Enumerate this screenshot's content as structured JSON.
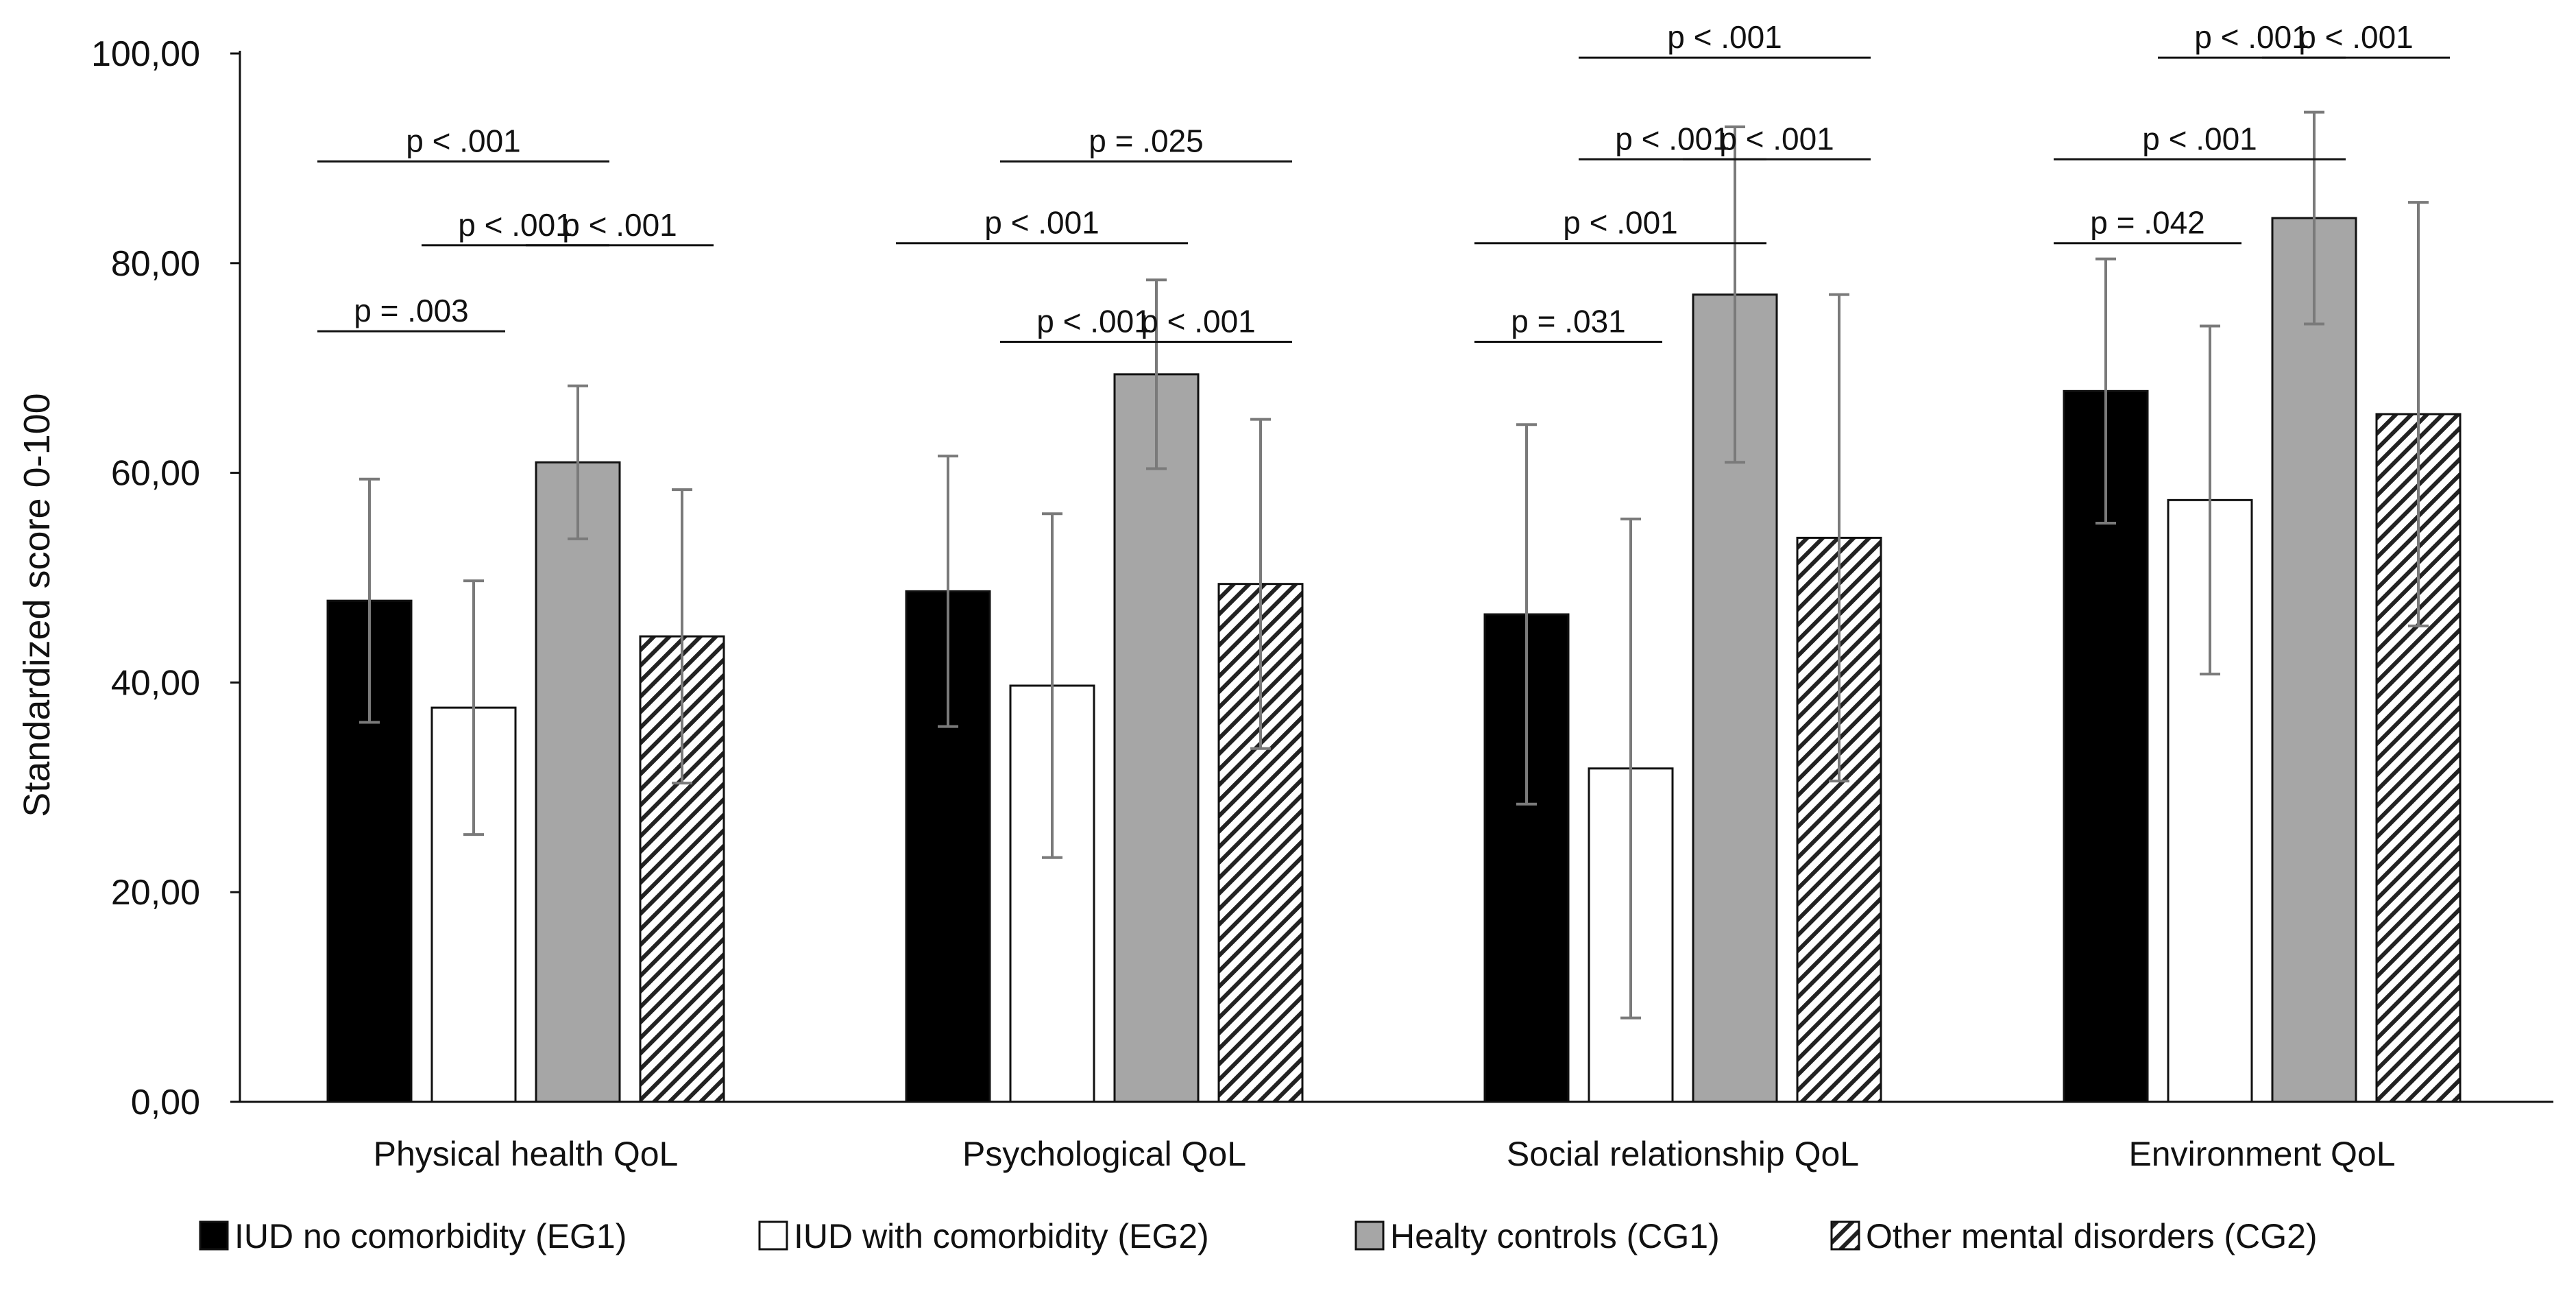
{
  "chart_data": {
    "type": "bar",
    "title": "",
    "xlabel": "",
    "ylabel": "Standardized score 0-100",
    "ylim": [
      0,
      100
    ],
    "yticks": [
      0,
      20,
      40,
      60,
      80,
      100
    ],
    "ytick_labels": [
      "0,00",
      "20,00",
      "40,00",
      "60,00",
      "80,00",
      "100,00"
    ],
    "grid": false,
    "legend_position": "bottom",
    "categories": [
      "Physical health QoL",
      "Psychological QoL",
      "Social relationship QoL",
      "Environment QoL"
    ],
    "series": [
      {
        "name": "IUD no comorbidity (EG1)",
        "fill": "#000000",
        "pattern": "solid",
        "values": [
          47.8,
          48.7,
          46.5,
          67.8
        ],
        "errors": [
          11.6,
          12.9,
          18.1,
          12.6
        ]
      },
      {
        "name": "IUD with comorbidity (EG2)",
        "fill": "#ffffff",
        "pattern": "solid",
        "values": [
          37.6,
          39.7,
          31.8,
          57.4
        ],
        "errors": [
          12.1,
          16.4,
          23.8,
          16.6
        ]
      },
      {
        "name": "Healty controls (CG1)",
        "fill": "#a6a6a6",
        "pattern": "solid",
        "values": [
          61.0,
          69.4,
          77.0,
          84.3
        ],
        "errors": [
          7.3,
          9.0,
          16.0,
          10.1
        ]
      },
      {
        "name": "Other mental disorders (CG2)",
        "fill": "#ffffff",
        "pattern": "hatch",
        "values": [
          44.4,
          49.4,
          53.8,
          65.6
        ],
        "errors": [
          14.0,
          15.7,
          23.2,
          20.2
        ]
      }
    ],
    "annotations": [
      {
        "category": 0,
        "from_series": 0,
        "to_series": 1,
        "level": 73.5,
        "text": "p = .003"
      },
      {
        "category": 0,
        "from_series": 1,
        "to_series": 2,
        "level": 81.7,
        "text": "p < .001"
      },
      {
        "category": 0,
        "from_series": 2,
        "to_series": 3,
        "level": 81.7,
        "text": "p < .001"
      },
      {
        "category": 0,
        "from_series": 0,
        "to_series": 2,
        "level": 89.7,
        "text": "p < .001"
      },
      {
        "category": 1,
        "from_series": 1,
        "to_series": 2,
        "level": 72.5,
        "text": "p < .001"
      },
      {
        "category": 1,
        "from_series": 2,
        "to_series": 3,
        "level": 72.5,
        "text": "p < .001"
      },
      {
        "category": 1,
        "from_series": 0,
        "to_series": 2,
        "level": 81.9,
        "text": "p < .001"
      },
      {
        "category": 1,
        "from_series": 1,
        "to_series": 3,
        "level": 89.7,
        "text": "p = .025"
      },
      {
        "category": 2,
        "from_series": 0,
        "to_series": 1,
        "level": 72.5,
        "text": "p = .031"
      },
      {
        "category": 2,
        "from_series": 0,
        "to_series": 2,
        "level": 81.9,
        "text": "p < .001"
      },
      {
        "category": 2,
        "from_series": 1,
        "to_series": 2,
        "level": 89.9,
        "text": "p < .001"
      },
      {
        "category": 2,
        "from_series": 2,
        "to_series": 3,
        "level": 89.9,
        "text": "p < .001"
      },
      {
        "category": 2,
        "from_series": 1,
        "to_series": 3,
        "level": 99.6,
        "text": "p < .001"
      },
      {
        "category": 3,
        "from_series": 0,
        "to_series": 1,
        "level": 81.9,
        "text": "p = .042"
      },
      {
        "category": 3,
        "from_series": 0,
        "to_series": 2,
        "level": 89.9,
        "text": "p < .001"
      },
      {
        "category": 3,
        "from_series": 1,
        "to_series": 2,
        "level": 99.6,
        "text": "p < .001"
      },
      {
        "category": 3,
        "from_series": 2,
        "to_series": 3,
        "level": 99.6,
        "text": "p < .001"
      }
    ]
  }
}
